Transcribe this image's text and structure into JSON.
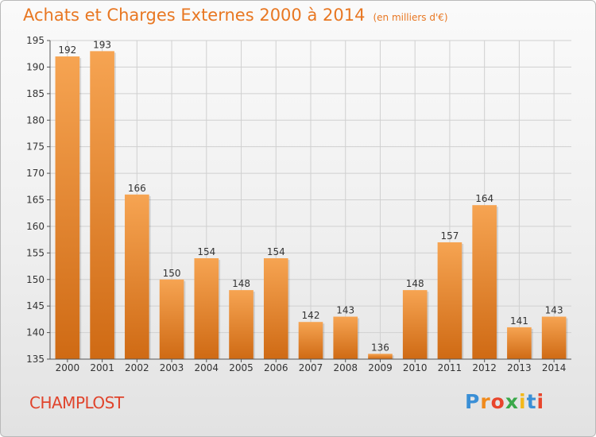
{
  "header": {
    "title": "Achats et Charges Externes 2000 à 2014",
    "unit": "(en milliers d'€)"
  },
  "footer": {
    "commune": "CHAMPLOST",
    "logo_letters": [
      "P",
      "r",
      "o",
      "x",
      "i",
      "t",
      "i"
    ],
    "logo_colors": [
      "#3a8fd6",
      "#f08a1c",
      "#e8452c",
      "#3aa84a",
      "#f3b81a",
      "#3a8fd6",
      "#e8452c"
    ]
  },
  "colors": {
    "bar_light": "#f6a452",
    "bar_dark": "#cf6a14",
    "title": "#e87722",
    "grid": "#d0d0d0",
    "axis_text": "#333333"
  },
  "chart_data": {
    "type": "bar",
    "title": "Achats et Charges Externes 2000 à 2014",
    "subtitle": "(en milliers d'€)",
    "xlabel": "",
    "ylabel": "",
    "categories": [
      "2000",
      "2001",
      "2002",
      "2003",
      "2004",
      "2005",
      "2006",
      "2007",
      "2008",
      "2009",
      "2010",
      "2011",
      "2012",
      "2013",
      "2014"
    ],
    "values": [
      192,
      193,
      166,
      150,
      154,
      148,
      154,
      142,
      143,
      136,
      148,
      157,
      164,
      141,
      143
    ],
    "ylim": [
      135,
      195
    ],
    "yticks": [
      135,
      140,
      145,
      150,
      155,
      160,
      165,
      170,
      175,
      180,
      185,
      190,
      195
    ],
    "grid": true,
    "data_labels": true
  }
}
